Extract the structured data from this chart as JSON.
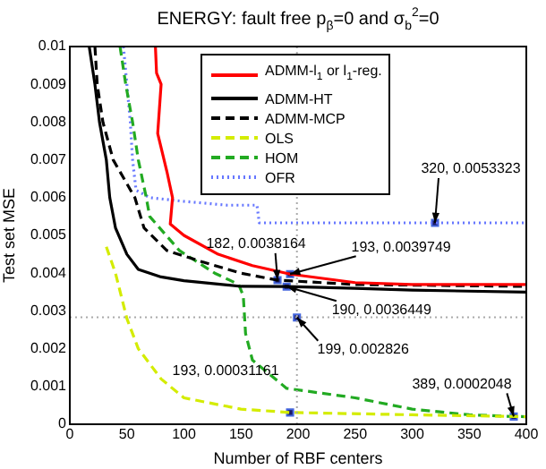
{
  "chart_data": {
    "type": "line",
    "title": "ENERGY: fault free p$_{β}$=0 and σ$_{b}$$^{2}$=0",
    "xlabel": "Number of RBF centers",
    "ylabel": "Test set MSE",
    "xlim": [
      0,
      400
    ],
    "xticks": [
      0,
      50,
      100,
      150,
      200,
      250,
      300,
      350,
      400
    ],
    "ylim": [
      0,
      0.01
    ],
    "yticks": [
      0,
      0.001,
      0.002,
      0.003,
      0.004,
      0.005,
      0.006,
      0.007,
      0.008,
      0.009,
      0.01
    ],
    "grid": false,
    "legend": "top",
    "marker": "none",
    "series": [
      {
        "name": "ADMM-l$_{1}$ or l$_{1}$-reg.",
        "color": "#ff0000",
        "line_style": "solid",
        "x": [
          75,
          76,
          80,
          77,
          85,
          90,
          88,
          100,
          130,
          160,
          193,
          250,
          300,
          400
        ],
        "values": [
          0.01,
          0.0093,
          0.009,
          0.0077,
          0.0067,
          0.006,
          0.0053,
          0.005,
          0.0045,
          0.0042,
          0.0039749,
          0.00375,
          0.0037,
          0.0037
        ]
      },
      {
        "name": "ADMM-HT",
        "color": "#000000",
        "line_style": "solid",
        "x": [
          17,
          22,
          26,
          32,
          35,
          40,
          50,
          60,
          80,
          100,
          150,
          190,
          250,
          300,
          400
        ],
        "values": [
          0.01,
          0.009,
          0.008,
          0.007,
          0.006,
          0.0052,
          0.0045,
          0.0041,
          0.0039,
          0.0038,
          0.00365,
          0.0036449,
          0.0036,
          0.00355,
          0.0035
        ]
      },
      {
        "name": "ADMM-MCP",
        "color": "#000000",
        "line_style": "dashed",
        "x": [
          22,
          24,
          29,
          38,
          57,
          65,
          85,
          116,
          150,
          182,
          250,
          400
        ],
        "values": [
          0.01,
          0.009,
          0.008,
          0.007,
          0.006,
          0.0052,
          0.0046,
          0.0043,
          0.004,
          0.0038164,
          0.0037,
          0.00365
        ]
      },
      {
        "name": "OLS",
        "color": "#d4ec00",
        "line_style": "dashed",
        "x": [
          32,
          40,
          50,
          60,
          80,
          100,
          150,
          193,
          300,
          400
        ],
        "values": [
          0.0047,
          0.004,
          0.0028,
          0.002,
          0.0012,
          0.0007,
          0.0004,
          0.00031161,
          0.00025,
          0.0002
        ]
      },
      {
        "name": "HOM",
        "color": "#22aa22",
        "line_style": "dashed",
        "x": [
          44,
          49,
          55,
          60,
          67,
          70,
          96,
          127,
          148,
          152,
          154,
          160,
          190,
          250,
          300,
          350,
          389,
          400
        ],
        "values": [
          0.01,
          0.009,
          0.008,
          0.007,
          0.006,
          0.0055,
          0.0046,
          0.004,
          0.0037,
          0.0034,
          0.0024,
          0.0017,
          0.00095,
          0.0007,
          0.0004,
          0.00025,
          0.0002048,
          0.0002
        ]
      },
      {
        "name": "OFR",
        "color": "#6677ff",
        "line_style": "dotted",
        "x": [
          47,
          50,
          53,
          55,
          58,
          70,
          100,
          138,
          164,
          166,
          320,
          400
        ],
        "values": [
          0.01,
          0.009,
          0.008,
          0.007,
          0.0062,
          0.006,
          0.0059,
          0.0058,
          0.0058,
          0.0053323,
          0.0053323,
          0.0053323
        ]
      },
      {
        "type": "scatter",
        "marker": "square",
        "color": "#1a1a66",
        "x": [
          320,
          182,
          193,
          190,
          199,
          193,
          389
        ],
        "values": [
          0.0053323,
          0.0038164,
          0.0039749,
          0.0036449,
          0.002826,
          0.00031161,
          0.0002048
        ]
      }
    ],
    "ref_lines": [
      {
        "axis": "x",
        "value": 199,
        "color": "#aaaaaa",
        "line_style": "dotted"
      },
      {
        "axis": "y",
        "value": 0.00283,
        "color": "#aaaaaa",
        "line_style": "dotted"
      }
    ],
    "annotations": [
      {
        "text": "320, 0.0053323",
        "x": 320,
        "y": 0.0053323
      },
      {
        "text": "182, 0.0038164",
        "x": 182,
        "y": 0.0038164
      },
      {
        "text": "193, 0.0039749",
        "x": 193,
        "y": 0.0039749
      },
      {
        "text": "190, 0.0036449",
        "x": 190,
        "y": 0.0036449
      },
      {
        "text": "199, 0.002826",
        "x": 199,
        "y": 0.002826
      },
      {
        "text": "193, 0.00031161",
        "x": 193,
        "y": 0.00031161
      },
      {
        "text": "389, 0.0002048",
        "x": 389,
        "y": 0.0002048
      }
    ]
  }
}
